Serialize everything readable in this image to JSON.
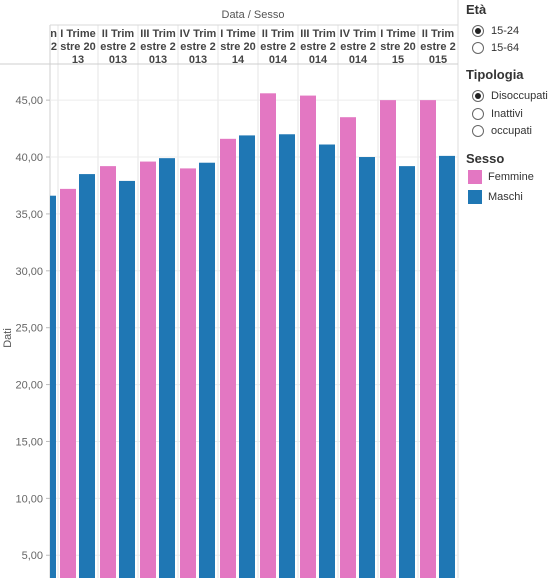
{
  "chart_data": {
    "type": "bar",
    "column_header_title": "Data / Sesso",
    "ylabel": "Dati",
    "ylim": [
      3.0,
      48.0
    ],
    "yticks": [
      "5,00",
      "10,00",
      "15,00",
      "20,00",
      "25,00",
      "30,00",
      "35,00",
      "40,00",
      "45,00"
    ],
    "ytick_values": [
      5,
      10,
      15,
      20,
      25,
      30,
      35,
      40,
      45
    ],
    "categories": [
      [
        "n",
        "2"
      ],
      [
        "I Trime",
        "stre 20",
        "13"
      ],
      [
        "II Trim",
        "estre 2",
        "013"
      ],
      [
        "III Trim",
        "estre 2",
        "013"
      ],
      [
        "IV Trim",
        "estre 2",
        "013"
      ],
      [
        "I Trime",
        "stre 20",
        "14"
      ],
      [
        "II Trim",
        "estre 2",
        "014"
      ],
      [
        "III Trim",
        "estre 2",
        "014"
      ],
      [
        "IV Trim",
        "estre 2",
        "014"
      ],
      [
        "I Trime",
        "stre 20",
        "15"
      ],
      [
        "II Trim",
        "estre 2",
        "015"
      ]
    ],
    "series": [
      {
        "name": "Femmine",
        "color": "#e377c2",
        "values": [
          null,
          37.2,
          39.2,
          39.6,
          39.0,
          41.6,
          45.6,
          45.4,
          43.5,
          45.0,
          45.0
        ]
      },
      {
        "name": "Maschi",
        "color": "#1f77b4",
        "values": [
          36.6,
          38.5,
          37.9,
          39.9,
          39.5,
          41.9,
          42.0,
          41.1,
          40.0,
          39.2,
          40.1
        ]
      }
    ],
    "grid": true
  },
  "filters": {
    "eta": {
      "title": "Età",
      "options": [
        {
          "label": "15-24",
          "selected": true
        },
        {
          "label": "15-64",
          "selected": false
        }
      ]
    },
    "tipologia": {
      "title": "Tipologia",
      "options": [
        {
          "label": "Disoccupati",
          "selected": true
        },
        {
          "label": "Inattivi",
          "selected": false
        },
        {
          "label": "occupati",
          "selected": false
        }
      ]
    }
  },
  "legend": {
    "title": "Sesso",
    "items": [
      {
        "label": "Femmine",
        "color": "#e377c2"
      },
      {
        "label": "Maschi",
        "color": "#1f77b4"
      }
    ]
  }
}
